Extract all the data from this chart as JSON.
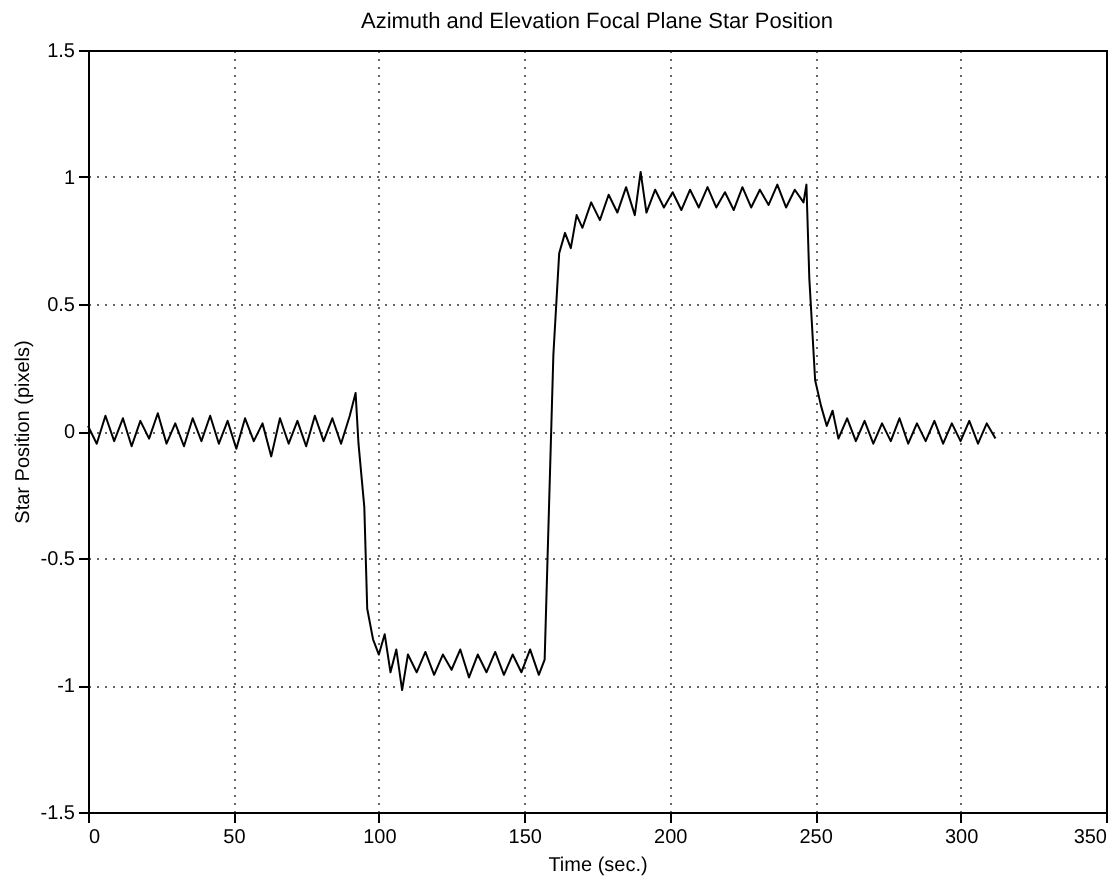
{
  "chart_data": {
    "type": "line",
    "title": "Azimuth and Elevation Focal Plane Star Position",
    "xlabel": "Time (sec.)",
    "ylabel": "Star Position (pixels)",
    "xlim": [
      0,
      350
    ],
    "xticks": [
      0,
      50,
      100,
      150,
      200,
      250,
      300,
      350
    ],
    "ylim": [
      -1.5,
      1.5
    ],
    "yticks": [
      -1.5,
      -1,
      -0.5,
      0,
      0.5,
      1,
      1.5
    ],
    "grid": true,
    "marker": "none",
    "line_style": "solid",
    "series": [
      {
        "color": "#000000",
        "x": [
          0,
          3,
          6,
          9,
          12,
          15,
          18,
          21,
          24,
          27,
          30,
          33,
          36,
          39,
          42,
          45,
          48,
          51,
          54,
          57,
          60,
          63,
          66,
          69,
          72,
          75,
          78,
          81,
          84,
          87,
          90,
          92,
          93,
          95,
          96,
          98,
          100,
          102,
          104,
          106,
          108,
          110,
          113,
          116,
          119,
          122,
          125,
          128,
          131,
          134,
          137,
          140,
          143,
          146,
          149,
          152,
          155,
          157,
          158,
          160,
          162,
          164,
          166,
          168,
          170,
          173,
          176,
          179,
          182,
          185,
          188,
          190,
          192,
          195,
          198,
          201,
          204,
          207,
          210,
          213,
          216,
          219,
          222,
          225,
          228,
          231,
          234,
          237,
          240,
          243,
          246,
          247,
          248,
          250,
          252,
          254,
          256,
          258,
          261,
          264,
          267,
          270,
          273,
          276,
          279,
          282,
          285,
          288,
          291,
          294,
          297,
          300,
          303,
          306,
          309,
          312
        ],
        "values": [
          0.02,
          -0.05,
          0.06,
          -0.04,
          0.05,
          -0.06,
          0.04,
          -0.03,
          0.07,
          -0.05,
          0.03,
          -0.06,
          0.05,
          -0.04,
          0.06,
          -0.05,
          0.04,
          -0.07,
          0.05,
          -0.04,
          0.03,
          -0.1,
          0.05,
          -0.05,
          0.04,
          -0.06,
          0.06,
          -0.04,
          0.05,
          -0.05,
          0.06,
          0.15,
          -0.05,
          -0.3,
          -0.7,
          -0.82,
          -0.88,
          -0.8,
          -0.95,
          -0.86,
          -1.02,
          -0.88,
          -0.95,
          -0.87,
          -0.96,
          -0.88,
          -0.94,
          -0.86,
          -0.97,
          -0.88,
          -0.95,
          -0.87,
          -0.96,
          -0.88,
          -0.95,
          -0.86,
          -0.96,
          -0.9,
          -0.5,
          0.3,
          0.7,
          0.78,
          0.72,
          0.85,
          0.8,
          0.9,
          0.83,
          0.93,
          0.86,
          0.96,
          0.85,
          1.02,
          0.86,
          0.95,
          0.88,
          0.94,
          0.87,
          0.95,
          0.88,
          0.96,
          0.88,
          0.94,
          0.87,
          0.96,
          0.88,
          0.95,
          0.89,
          0.97,
          0.88,
          0.95,
          0.9,
          0.97,
          0.6,
          0.2,
          0.1,
          0.02,
          0.08,
          -0.03,
          0.05,
          -0.04,
          0.04,
          -0.05,
          0.03,
          -0.04,
          0.05,
          -0.05,
          0.03,
          -0.04,
          0.04,
          -0.05,
          0.03,
          -0.04,
          0.04,
          -0.05,
          0.03,
          -0.03
        ]
      }
    ]
  }
}
